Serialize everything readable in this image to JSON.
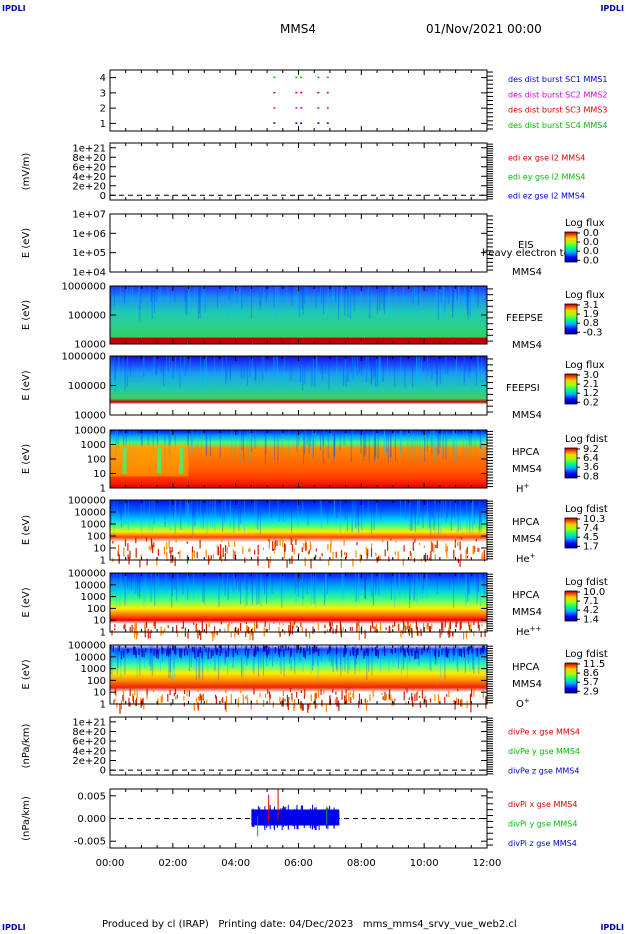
{
  "corner_label": "IPDLI",
  "header": {
    "spacecraft": "MMS4",
    "datetime": "01/Nov/2021 00:00"
  },
  "footer": {
    "text": "Produced by cl (IRAP)   Printing date: 04/Dec/2023   mms_mms4_srvy_vue_web2.cl"
  },
  "colors": {
    "red": "#dd0000",
    "magenta": "#dd00dd",
    "green": "#00bb00",
    "blue": "#0000cc"
  },
  "chart_data": {
    "type": "stacked-panels",
    "x_ticks": [
      "00:00",
      "02:00",
      "04:00",
      "06:00",
      "08:00",
      "10:00",
      "12:00"
    ],
    "xlim_hours": [
      0,
      12
    ],
    "panels": [
      {
        "id": "des-burst",
        "type": "scatter",
        "ylabel": "",
        "ytick_labels": [
          "4",
          "3",
          "2",
          "1"
        ],
        "ylim": [
          0.5,
          4.5
        ],
        "legend": [
          {
            "text": "des dist burst SC1 MMS1",
            "color": "blue"
          },
          {
            "text": "des dist burst SC2 MMS2",
            "color": "magenta"
          },
          {
            "text": "des dist burst SC3 MMS3",
            "color": "red"
          },
          {
            "text": "des dist burst SC4 MMS4",
            "color": "green"
          }
        ],
        "burst_times_hours": [
          5.2,
          5.9,
          6.05,
          6.6,
          6.9
        ]
      },
      {
        "id": "edi",
        "type": "line",
        "ylabel": "(mV/m)",
        "ytick_labels": [
          "1e+21",
          "8e+20",
          "6e+20",
          "4e+20",
          "2e+20",
          "0"
        ],
        "ylim": [
          -1e+20,
          1.1e+21
        ],
        "legend": [
          {
            "text": "edi ex gse l2 MMS4",
            "color": "red"
          },
          {
            "text": "edi ey gse l2 MMS4",
            "color": "green"
          },
          {
            "text": "edi ez gse l2 MMS4",
            "color": "blue"
          }
        ]
      },
      {
        "id": "eis",
        "type": "heatmap",
        "ylabel": "E (eV)",
        "ytick_labels": [
          "1e+07",
          "1e+06",
          "1e+05",
          "1e+04"
        ],
        "side_labels": [
          "EIS",
          "heavy electron to",
          "MMS4"
        ],
        "colorbar": {
          "title": "Log flux",
          "labels": [
            "0.0",
            "0.0",
            "0.0",
            "0.0"
          ]
        }
      },
      {
        "id": "feepse",
        "type": "heatmap",
        "ylabel": "E (eV)",
        "ytick_labels": [
          "1000000",
          "100000",
          "10000"
        ],
        "side_labels": [
          "FEEPSE",
          "MMS4"
        ],
        "colorbar": {
          "title": "Log flux",
          "labels": [
            "3.1",
            "1.9",
            "0.8",
            "-0.3"
          ]
        }
      },
      {
        "id": "feepsi",
        "type": "heatmap",
        "ylabel": "E (eV)",
        "ytick_labels": [
          "1000000",
          "100000",
          "10000"
        ],
        "side_labels": [
          "FEEPSI",
          "MMS4"
        ],
        "colorbar": {
          "title": "Log flux",
          "labels": [
            "3.0",
            "2.1",
            "1.2",
            "0.2"
          ]
        }
      },
      {
        "id": "hpca-h",
        "type": "heatmap",
        "ylabel": "E (eV)",
        "ytick_labels": [
          "10000",
          "1000",
          "100",
          "10",
          "1"
        ],
        "side_labels": [
          "HPCA",
          "MMS4"
        ],
        "species": {
          "base": "H",
          "sup": "+"
        },
        "colorbar": {
          "title": "Log fdist",
          "labels": [
            "9.2",
            "6.4",
            "3.6",
            "0.8"
          ]
        }
      },
      {
        "id": "hpca-he",
        "type": "heatmap",
        "ylabel": "E (eV)",
        "ytick_labels": [
          "100000",
          "10000",
          "1000",
          "100",
          "10",
          "1"
        ],
        "side_labels": [
          "HPCA",
          "MMS4"
        ],
        "species": {
          "base": "He",
          "sup": "+"
        },
        "colorbar": {
          "title": "Log fdist",
          "labels": [
            "10.3",
            "7.4",
            "4.5",
            "1.7"
          ]
        }
      },
      {
        "id": "hpca-he2",
        "type": "heatmap",
        "ylabel": "E (eV)",
        "ytick_labels": [
          "100000",
          "10000",
          "1000",
          "100",
          "10",
          "1"
        ],
        "side_labels": [
          "HPCA",
          "MMS4"
        ],
        "species": {
          "base": "He",
          "sup": "++"
        },
        "colorbar": {
          "title": "Log fdist",
          "labels": [
            "10.0",
            "7.1",
            "4.2",
            "1.4"
          ]
        }
      },
      {
        "id": "hpca-o",
        "type": "heatmap",
        "ylabel": "E (eV)",
        "ytick_labels": [
          "100000",
          "10000",
          "1000",
          "100",
          "10",
          "1"
        ],
        "side_labels": [
          "HPCA",
          "MMS4"
        ],
        "species": {
          "base": "O",
          "sup": "+"
        },
        "colorbar": {
          "title": "Log fdist",
          "labels": [
            "11.5",
            "8.6",
            "5.7",
            "2.9"
          ]
        }
      },
      {
        "id": "divpe",
        "type": "line",
        "ylabel": "(nPa/km)",
        "ytick_labels": [
          "1e+21",
          "8e+20",
          "6e+20",
          "4e+20",
          "2e+20",
          "0"
        ],
        "ylim": [
          -1e+20,
          1.1e+21
        ],
        "legend": [
          {
            "text": "divPe x gse MMS4",
            "color": "red"
          },
          {
            "text": "divPe y gse MMS4",
            "color": "green"
          },
          {
            "text": "divPe z gse MMS4",
            "color": "blue"
          }
        ]
      },
      {
        "id": "divpi",
        "type": "line",
        "ylabel": "(nPa/km)",
        "ytick_labels": [
          "0.005",
          "0.000",
          "-0.005"
        ],
        "ylim": [
          -0.0065,
          0.0065
        ],
        "legend": [
          {
            "text": "divPi x gse MMS4",
            "color": "red"
          },
          {
            "text": "divPi y gse MMS4",
            "color": "green"
          },
          {
            "text": "divPi z gse MMS4",
            "color": "blue"
          }
        ],
        "data_span_hours": [
          4.5,
          7.3
        ]
      }
    ]
  }
}
